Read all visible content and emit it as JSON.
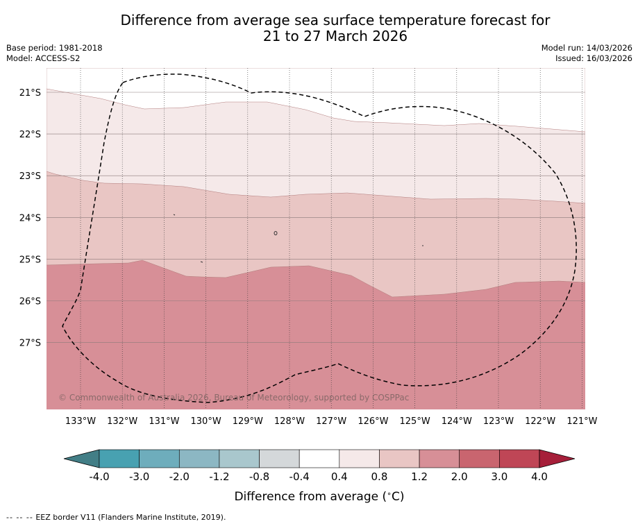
{
  "chart_data": {
    "type": "heatmap",
    "title_line1": "Difference from average sea surface temperature forecast for",
    "title_line2": "21 to 27 March 2026",
    "base_period": "Base period: 1981-2018",
    "model": "Model: ACCESS-S2",
    "model_run": "Model run: 14/03/2026",
    "issued": "Issued: 16/03/2026",
    "copyright": "© Commonwealth of Australia 2026, Bureau of Meteorology, supported by COSPPac",
    "x_ticks": [
      "133°W",
      "132°W",
      "131°W",
      "130°W",
      "129°W",
      "128°W",
      "127°W",
      "126°W",
      "125°W",
      "124°W",
      "123°W",
      "122°W",
      "121°W"
    ],
    "y_ticks": [
      "21°S",
      "22°S",
      "23°S",
      "24°S",
      "25°S",
      "26°S",
      "27°S"
    ],
    "colorbar_label": "Difference from average (",
    "colorbar_unit_deg": "∘",
    "colorbar_unit_close": "C)",
    "colorbar_ticks": [
      "-4.0",
      "-3.0",
      "-2.0",
      "-1.2",
      "-0.8",
      "-0.4",
      "0.4",
      "0.8",
      "1.2",
      "2.0",
      "3.0",
      "4.0"
    ],
    "colorbar_colors": [
      "#48a1b1",
      "#6eadbc",
      "#8cb7c3",
      "#a9c7cd",
      "#d4d8da",
      "#ffffff",
      "#f5e9e9",
      "#e9c6c4",
      "#d78f97",
      "#c9656f",
      "#bf4656"
    ],
    "under_color": "#427e86",
    "over_color": "#a61f3a",
    "bands": [
      {
        "range": "0.4 to 0.8",
        "color": "#f5e9e9"
      },
      {
        "range": "0.8 to 1.2",
        "color": "#e9c6c4"
      },
      {
        "range": "1.2 to 2.0",
        "color": "#d78f97"
      }
    ],
    "footer_dash": "-- -- --",
    "footer_text": "EEZ border V11 (Flanders Marine Institute, 2019)."
  }
}
